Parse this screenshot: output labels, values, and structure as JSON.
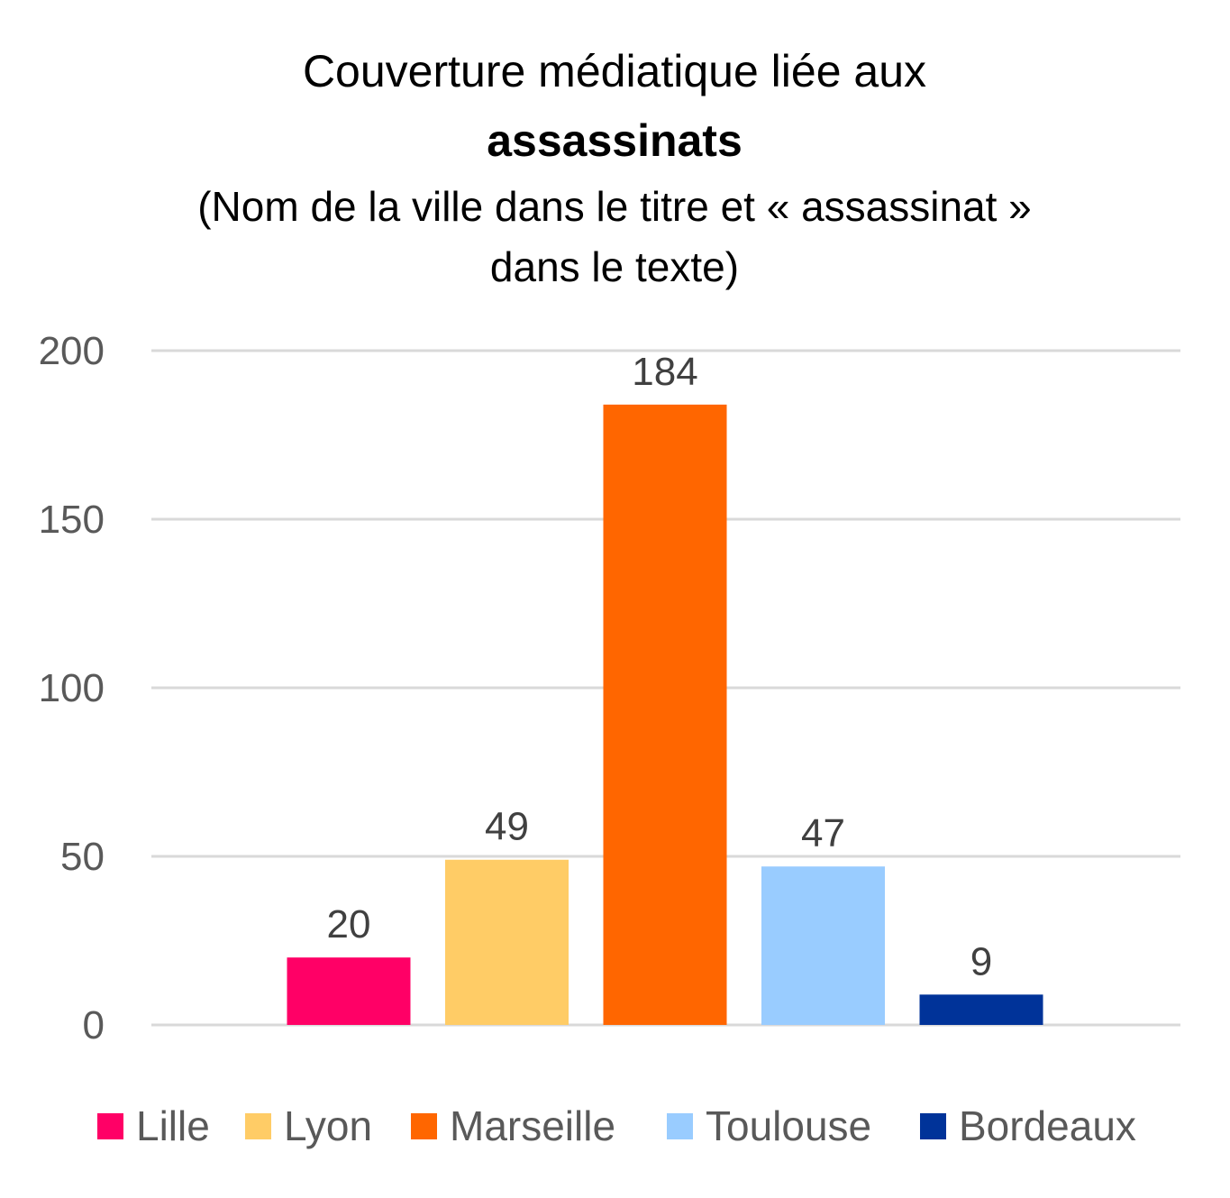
{
  "chart_data": {
    "type": "bar",
    "title": "Couverture médiatique liée aux",
    "title_bold": "assassinats",
    "subtitle_line1": "(Nom de la ville dans le titre et « assassinat »",
    "subtitle_line2": "dans le texte)",
    "xlabel": "",
    "ylabel": "",
    "ylim": [
      0,
      200
    ],
    "yticks": [
      0,
      50,
      100,
      150,
      200
    ],
    "grid": true,
    "legend_position": "bottom",
    "series": [
      {
        "name": "Lille",
        "value": 20,
        "color": "#FF0066"
      },
      {
        "name": "Lyon",
        "value": 49,
        "color": "#FFCC66"
      },
      {
        "name": "Marseille",
        "value": 184,
        "color": "#FF6600"
      },
      {
        "name": "Toulouse",
        "value": 47,
        "color": "#99CCFF"
      },
      {
        "name": "Bordeaux",
        "value": 9,
        "color": "#003399"
      }
    ]
  }
}
